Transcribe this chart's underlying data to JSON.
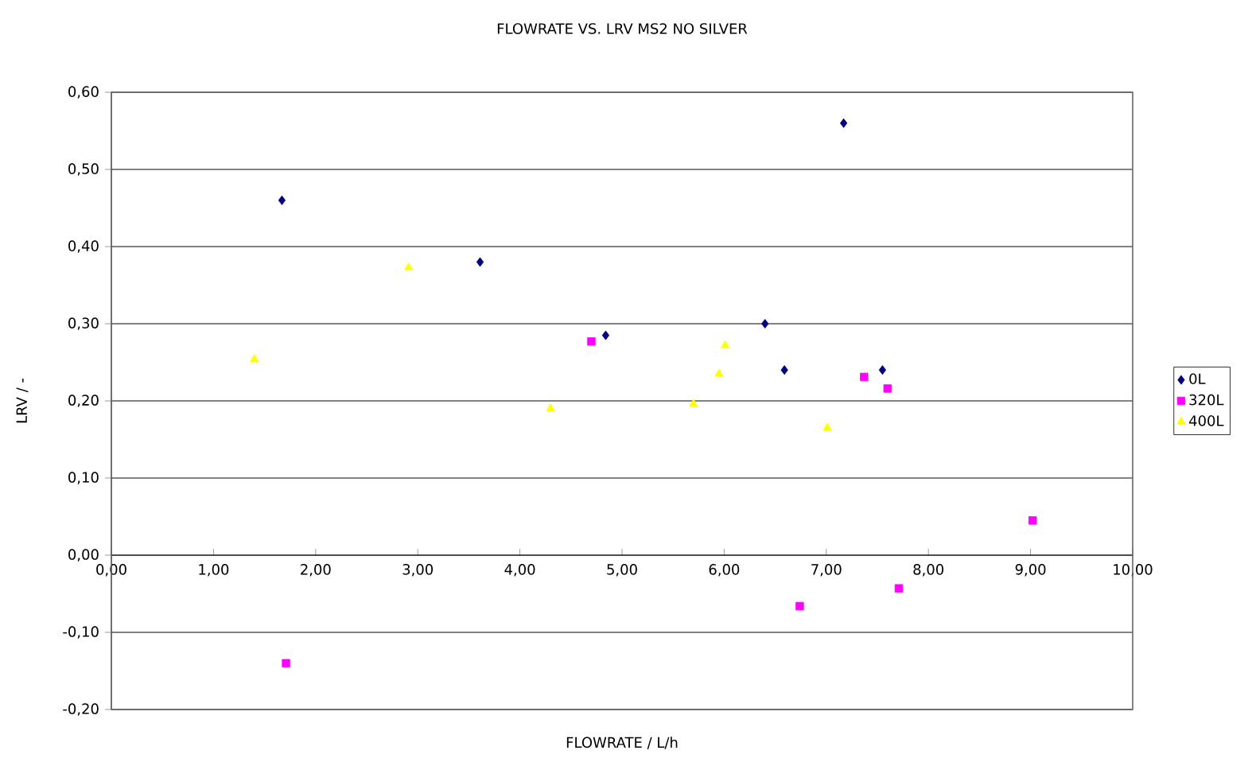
{
  "chart_data": {
    "type": "scatter",
    "title": "FLOWRATE VS. LRV MS2 NO SILVER",
    "xlabel": "FLOWRATE / L/h",
    "ylabel": "LRV / -",
    "xlim": [
      0,
      10
    ],
    "ylim": [
      -0.2,
      0.6
    ],
    "xticks": [
      {
        "value": 0,
        "label": "0,00"
      },
      {
        "value": 1,
        "label": "1,00"
      },
      {
        "value": 2,
        "label": "2,00"
      },
      {
        "value": 3,
        "label": "3,00"
      },
      {
        "value": 4,
        "label": "4,00"
      },
      {
        "value": 5,
        "label": "5,00"
      },
      {
        "value": 6,
        "label": "6,00"
      },
      {
        "value": 7,
        "label": "7,00"
      },
      {
        "value": 8,
        "label": "8,00"
      },
      {
        "value": 9,
        "label": "9,00"
      },
      {
        "value": 10,
        "label": "10,00"
      }
    ],
    "yticks": [
      {
        "value": -0.2,
        "label": "-0,20"
      },
      {
        "value": -0.1,
        "label": "-0,10"
      },
      {
        "value": 0,
        "label": "0,00"
      },
      {
        "value": 0.1,
        "label": "0,10"
      },
      {
        "value": 0.2,
        "label": "0,20"
      },
      {
        "value": 0.3,
        "label": "0,30"
      },
      {
        "value": 0.4,
        "label": "0,40"
      },
      {
        "value": 0.5,
        "label": "0,50"
      },
      {
        "value": 0.6,
        "label": "0,60"
      }
    ],
    "grid": "y",
    "legend": "right",
    "series": [
      {
        "name": "0L",
        "color": "#000080",
        "marker": "diamond",
        "x": [
          1.67,
          3.61,
          4.84,
          6.4,
          6.59,
          7.17,
          7.55
        ],
        "values": [
          0.46,
          0.38,
          0.285,
          0.3,
          0.24,
          0.56,
          0.24
        ]
      },
      {
        "name": "320L",
        "color": "#ff00ff",
        "marker": "square",
        "x": [
          1.71,
          4.7,
          6.74,
          7.37,
          7.6,
          7.71,
          9.02
        ],
        "values": [
          -0.14,
          0.277,
          -0.066,
          0.231,
          0.216,
          -0.043,
          0.045
        ]
      },
      {
        "name": "400L",
        "color": "#ffff00",
        "marker": "triangle",
        "x": [
          1.4,
          2.91,
          4.3,
          5.7,
          5.95,
          6.01,
          7.01
        ],
        "values": [
          0.254,
          0.373,
          0.19,
          0.196,
          0.235,
          0.272,
          0.165
        ]
      }
    ]
  }
}
